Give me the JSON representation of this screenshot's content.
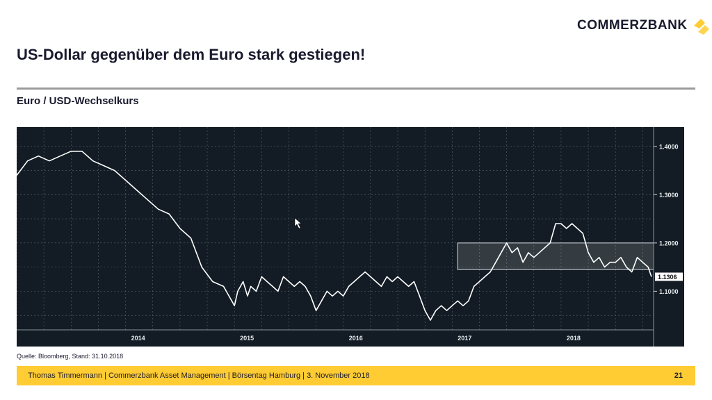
{
  "brand": {
    "name": "COMMERZBANK",
    "logo_color": "#ffcc33",
    "logo_icon": "commerzbank-ribbon-icon"
  },
  "slide": {
    "title": "US-Dollar gegenüber dem Euro stark gestiegen!",
    "subtitle": "Euro / USD-Wechselkurs",
    "source": "Quelle: Bloomberg, Stand: 31.10.2018",
    "footer": "Thomas Timmermann | Commerzbank Asset Management | Börsentag Hamburg | 3. November 2018",
    "page": "21"
  },
  "chart_data": {
    "type": "line",
    "title": "",
    "xlabel": "",
    "ylabel": "",
    "xlim": [
      2013.0,
      2018.85
    ],
    "ylim": [
      1.02,
      1.44
    ],
    "x_ticks": [
      {
        "label": "2014",
        "value": 2014.0
      },
      {
        "label": "2015",
        "value": 2015.0
      },
      {
        "label": "2016",
        "value": 2016.0
      },
      {
        "label": "2017",
        "value": 2017.0
      },
      {
        "label": "2018",
        "value": 2018.0
      }
    ],
    "y_ticks": [
      {
        "label": "1.4000",
        "value": 1.4
      },
      {
        "label": "1.3000",
        "value": 1.3
      },
      {
        "label": "1.2000",
        "value": 1.2
      },
      {
        "label": "1.1000",
        "value": 1.1
      }
    ],
    "last_value_label": "1.1306",
    "band": {
      "x_start": 2017.05,
      "x_end": 2018.85,
      "y_low": 1.145,
      "y_high": 1.2
    },
    "grid": true,
    "background": "#131c24",
    "line_color": "#ffffff",
    "series": [
      {
        "name": "",
        "x": [
          2013.0,
          2013.1,
          2013.2,
          2013.3,
          2013.4,
          2013.5,
          2013.6,
          2013.7,
          2013.8,
          2013.9,
          2014.0,
          2014.1,
          2014.2,
          2014.3,
          2014.4,
          2014.5,
          2014.6,
          2014.7,
          2014.8,
          2014.9,
          2015.0,
          2015.03,
          2015.08,
          2015.12,
          2015.15,
          2015.2,
          2015.25,
          2015.3,
          2015.35,
          2015.4,
          2015.45,
          2015.5,
          2015.55,
          2015.6,
          2015.65,
          2015.7,
          2015.75,
          2015.8,
          2015.85,
          2015.9,
          2015.95,
          2016.0,
          2016.05,
          2016.1,
          2016.15,
          2016.2,
          2016.25,
          2016.3,
          2016.35,
          2016.4,
          2016.45,
          2016.5,
          2016.55,
          2016.6,
          2016.65,
          2016.7,
          2016.75,
          2016.8,
          2016.85,
          2016.9,
          2016.95,
          2017.0,
          2017.05,
          2017.1,
          2017.15,
          2017.2,
          2017.25,
          2017.3,
          2017.35,
          2017.4,
          2017.45,
          2017.5,
          2017.55,
          2017.6,
          2017.65,
          2017.7,
          2017.75,
          2017.8,
          2017.85,
          2017.9,
          2017.95,
          2018.0,
          2018.05,
          2018.1,
          2018.15,
          2018.2,
          2018.25,
          2018.3,
          2018.35,
          2018.4,
          2018.45,
          2018.5,
          2018.55,
          2018.6,
          2018.65,
          2018.7,
          2018.75,
          2018.8,
          2018.83
        ],
        "values": [
          1.34,
          1.37,
          1.38,
          1.37,
          1.38,
          1.39,
          1.39,
          1.37,
          1.36,
          1.35,
          1.33,
          1.31,
          1.29,
          1.27,
          1.26,
          1.23,
          1.21,
          1.15,
          1.12,
          1.11,
          1.07,
          1.1,
          1.12,
          1.09,
          1.11,
          1.1,
          1.13,
          1.12,
          1.11,
          1.1,
          1.13,
          1.12,
          1.11,
          1.12,
          1.11,
          1.09,
          1.06,
          1.08,
          1.1,
          1.09,
          1.1,
          1.09,
          1.11,
          1.12,
          1.13,
          1.14,
          1.13,
          1.12,
          1.11,
          1.13,
          1.12,
          1.13,
          1.12,
          1.11,
          1.12,
          1.09,
          1.06,
          1.04,
          1.06,
          1.07,
          1.06,
          1.07,
          1.08,
          1.07,
          1.08,
          1.11,
          1.12,
          1.13,
          1.14,
          1.16,
          1.18,
          1.2,
          1.18,
          1.19,
          1.16,
          1.18,
          1.17,
          1.18,
          1.19,
          1.2,
          1.24,
          1.24,
          1.23,
          1.24,
          1.23,
          1.22,
          1.18,
          1.16,
          1.17,
          1.15,
          1.16,
          1.16,
          1.17,
          1.15,
          1.14,
          1.17,
          1.16,
          1.15,
          1.13
        ]
      }
    ]
  }
}
